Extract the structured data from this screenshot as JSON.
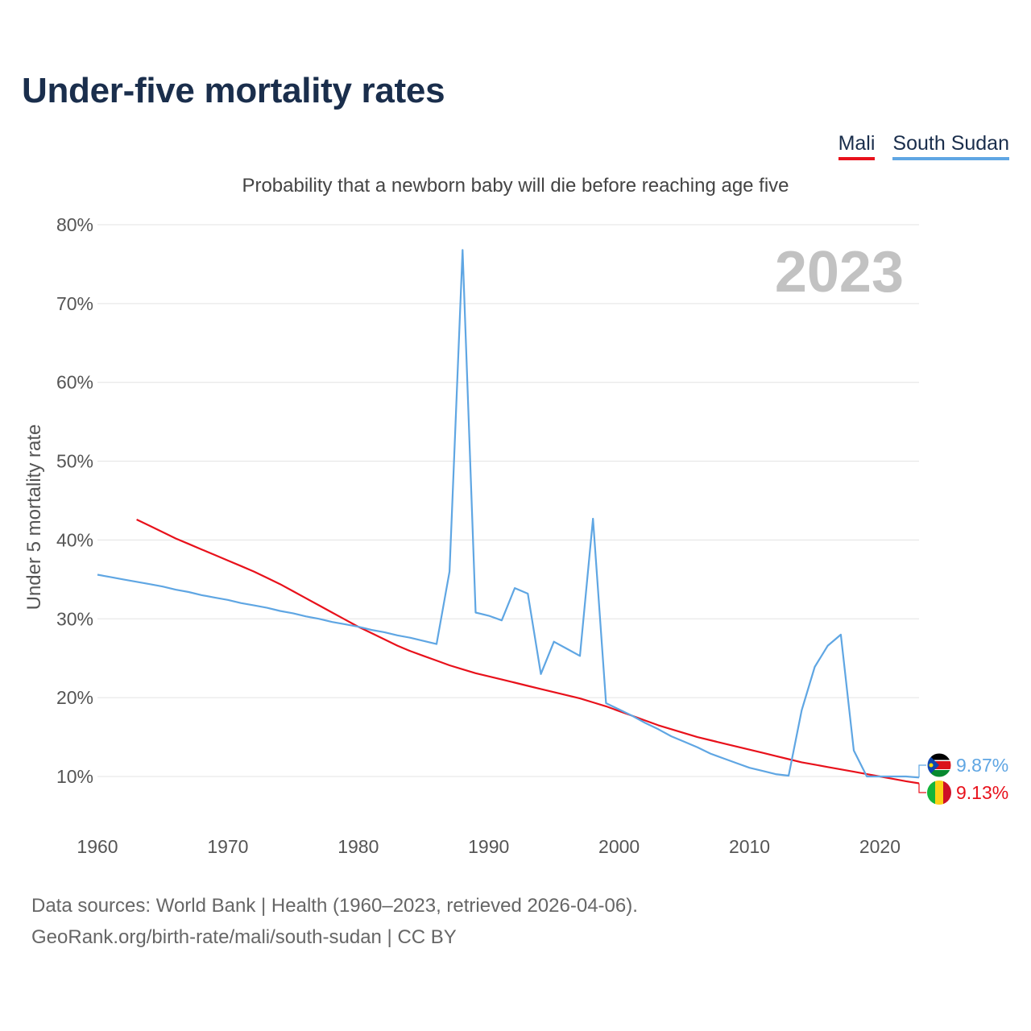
{
  "title": "Under-five mortality rates",
  "subtitle": "Probability that a newborn baby will die before reaching age five",
  "legend": [
    {
      "name": "Mali",
      "color": "#e8111b"
    },
    {
      "name": "South Sudan",
      "color": "#5fa6e3"
    }
  ],
  "year_label": "2023",
  "footer": {
    "line1": "Data sources: World Bank | Health (1960–2023, retrieved 2026-04-06).",
    "line2": "GeoRank.org/birth-rate/mali/south-sudan | CC BY"
  },
  "chart_data": {
    "type": "line",
    "title": "Under-five mortality rates",
    "subtitle": "Probability that a newborn baby will die before reaching age five",
    "xlabel": "",
    "ylabel": "Under 5 mortality rate",
    "xlim": [
      1960,
      2023
    ],
    "ylim": [
      5,
      80
    ],
    "yticks": [
      10,
      20,
      30,
      40,
      50,
      60,
      70,
      80
    ],
    "ytick_labels": [
      "10%",
      "20%",
      "30%",
      "40%",
      "50%",
      "60%",
      "70%",
      "80%"
    ],
    "xticks": [
      1960,
      1970,
      1980,
      1990,
      2000,
      2010,
      2020
    ],
    "xtick_labels": [
      "1960",
      "1970",
      "1980",
      "1990",
      "2000",
      "2010",
      "2020"
    ],
    "grid": true,
    "legend_position": "top-right",
    "series": [
      {
        "name": "Mali",
        "color": "#e8111b",
        "end_label": "9.13%",
        "flag": "mali-flag",
        "x": [
          1963,
          1964,
          1965,
          1966,
          1967,
          1968,
          1969,
          1970,
          1971,
          1972,
          1973,
          1974,
          1975,
          1976,
          1977,
          1978,
          1979,
          1980,
          1981,
          1982,
          1983,
          1984,
          1985,
          1986,
          1987,
          1988,
          1989,
          1990,
          1991,
          1992,
          1993,
          1994,
          1995,
          1996,
          1997,
          1998,
          1999,
          2000,
          2001,
          2002,
          2003,
          2004,
          2005,
          2006,
          2007,
          2008,
          2009,
          2010,
          2011,
          2012,
          2013,
          2014,
          2015,
          2016,
          2017,
          2018,
          2019,
          2020,
          2021,
          2022,
          2023
        ],
        "values": [
          42.6,
          41.8,
          41.0,
          40.2,
          39.5,
          38.8,
          38.1,
          37.4,
          36.7,
          36.0,
          35.2,
          34.4,
          33.5,
          32.6,
          31.7,
          30.8,
          29.9,
          29.0,
          28.2,
          27.4,
          26.6,
          25.9,
          25.3,
          24.7,
          24.1,
          23.6,
          23.1,
          22.7,
          22.3,
          21.9,
          21.5,
          21.1,
          20.7,
          20.3,
          19.9,
          19.4,
          18.9,
          18.3,
          17.7,
          17.1,
          16.5,
          16.0,
          15.5,
          15.0,
          14.6,
          14.2,
          13.8,
          13.4,
          13.0,
          12.6,
          12.2,
          11.8,
          11.5,
          11.2,
          10.9,
          10.6,
          10.3,
          10.0,
          9.7,
          9.4,
          9.13
        ]
      },
      {
        "name": "South Sudan",
        "color": "#5fa6e3",
        "end_label": "9.87%",
        "flag": "south-sudan-flag",
        "x": [
          1960,
          1961,
          1962,
          1963,
          1964,
          1965,
          1966,
          1967,
          1968,
          1969,
          1970,
          1971,
          1972,
          1973,
          1974,
          1975,
          1976,
          1977,
          1978,
          1979,
          1980,
          1981,
          1982,
          1983,
          1984,
          1985,
          1986,
          1987,
          1988,
          1989,
          1990,
          1991,
          1992,
          1993,
          1994,
          1995,
          1996,
          1997,
          1998,
          1999,
          2000,
          2001,
          2002,
          2003,
          2004,
          2005,
          2006,
          2007,
          2008,
          2009,
          2010,
          2011,
          2012,
          2013,
          2014,
          2015,
          2016,
          2017,
          2018,
          2019,
          2020,
          2021,
          2022,
          2023
        ],
        "values": [
          35.6,
          35.3,
          35.0,
          34.7,
          34.4,
          34.1,
          33.7,
          33.4,
          33.0,
          32.7,
          32.4,
          32.0,
          31.7,
          31.4,
          31.0,
          30.7,
          30.3,
          30.0,
          29.6,
          29.3,
          29.0,
          28.6,
          28.3,
          27.9,
          27.6,
          27.2,
          26.8,
          36.0,
          76.8,
          30.8,
          30.4,
          29.8,
          33.9,
          33.2,
          23.0,
          27.1,
          26.2,
          25.3,
          42.7,
          19.3,
          18.5,
          17.7,
          16.8,
          16.0,
          15.1,
          14.4,
          13.7,
          12.9,
          12.3,
          11.7,
          11.1,
          10.7,
          10.3,
          10.1,
          18.4,
          23.9,
          26.6,
          28.0,
          13.3,
          10.0,
          10.0,
          10.0,
          10.0,
          9.87
        ]
      }
    ]
  }
}
